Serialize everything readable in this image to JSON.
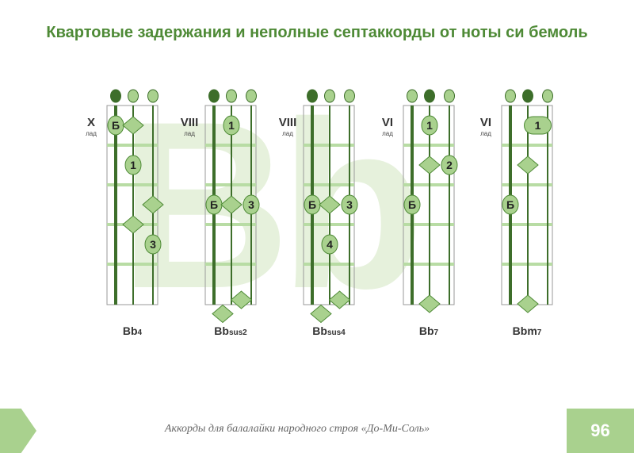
{
  "title": "Квартовые задержания и неполные септаккорды от ноты си бемоль",
  "watermark": "Bb",
  "footer": "Аккорды для балалайки народного строя «До-Ми-Соль»",
  "page_number": "96",
  "colors": {
    "title": "#4e8a36",
    "marker_fill": "#a9d18e",
    "marker_stroke": "#4e8a36",
    "fret_line": "#b8dca4",
    "string_line": "#3d6e2a",
    "watermark": "#e6f1dc"
  },
  "chords": [
    {
      "fret_label": "X",
      "fret_sub": "лад",
      "name": "Bb",
      "name_ext": "4",
      "open_strings": [
        "filled",
        "open",
        "open"
      ],
      "markers": [
        {
          "string": 1,
          "fret": 1,
          "shape": "circle",
          "label": "Б"
        },
        {
          "string": 2,
          "fret": 1,
          "shape": "diamond",
          "label": ""
        },
        {
          "string": 2,
          "fret": 2,
          "shape": "circle",
          "label": "1"
        },
        {
          "string": 3,
          "fret": 3,
          "shape": "diamond",
          "label": ""
        },
        {
          "string": 2,
          "fret": 3.5,
          "shape": "diamond",
          "label": ""
        },
        {
          "string": 3,
          "fret": 4,
          "shape": "circle",
          "label": "3"
        }
      ]
    },
    {
      "fret_label": "VIII",
      "fret_sub": "лад",
      "name": "Bb",
      "name_ext": "sus2",
      "open_strings": [
        "filled",
        "open",
        "open"
      ],
      "markers": [
        {
          "string": 2,
          "fret": 1,
          "shape": "circle",
          "label": "1"
        },
        {
          "string": 1,
          "fret": 3,
          "shape": "circle",
          "label": "Б"
        },
        {
          "string": 2,
          "fret": 3,
          "shape": "diamond",
          "label": ""
        },
        {
          "string": 3,
          "fret": 3,
          "shape": "circle",
          "label": "3"
        },
        {
          "string": 2.5,
          "fret": 5.4,
          "shape": "diamond",
          "label": ""
        },
        {
          "string": 1.5,
          "fret": 5.75,
          "shape": "diamond",
          "label": ""
        }
      ]
    },
    {
      "fret_label": "VIII",
      "fret_sub": "лад",
      "name": "Bb",
      "name_ext": "sus4",
      "open_strings": [
        "filled",
        "open",
        "open"
      ],
      "markers": [
        {
          "string": 1,
          "fret": 3,
          "shape": "circle",
          "label": "Б"
        },
        {
          "string": 2,
          "fret": 3,
          "shape": "diamond",
          "label": ""
        },
        {
          "string": 3,
          "fret": 3,
          "shape": "circle",
          "label": "3"
        },
        {
          "string": 2,
          "fret": 4,
          "shape": "circle",
          "label": "4"
        },
        {
          "string": 2.5,
          "fret": 5.4,
          "shape": "diamond",
          "label": ""
        },
        {
          "string": 1.5,
          "fret": 5.75,
          "shape": "diamond",
          "label": ""
        }
      ]
    },
    {
      "fret_label": "VI",
      "fret_sub": "лад",
      "name": "Bb",
      "name_ext": "7",
      "open_strings": [
        "open",
        "filled",
        "open"
      ],
      "markers": [
        {
          "string": 2,
          "fret": 1,
          "shape": "circle",
          "label": "1"
        },
        {
          "string": 2,
          "fret": 2,
          "shape": "diamond",
          "label": ""
        },
        {
          "string": 3,
          "fret": 2,
          "shape": "circle",
          "label": "2"
        },
        {
          "string": 1,
          "fret": 3,
          "shape": "circle",
          "label": "Б"
        },
        {
          "string": 2,
          "fret": 5.5,
          "shape": "diamond",
          "label": ""
        }
      ]
    },
    {
      "fret_label": "VI",
      "fret_sub": "лад",
      "name": "Bbm",
      "name_ext": "7",
      "open_strings": [
        "open",
        "filled",
        "open"
      ],
      "markers": [
        {
          "string": 2.5,
          "fret": 1,
          "shape": "barre",
          "label": "1"
        },
        {
          "string": 2,
          "fret": 2,
          "shape": "diamond",
          "label": ""
        },
        {
          "string": 1,
          "fret": 3,
          "shape": "circle",
          "label": "Б"
        },
        {
          "string": 2,
          "fret": 5.5,
          "shape": "diamond",
          "label": ""
        }
      ]
    }
  ]
}
